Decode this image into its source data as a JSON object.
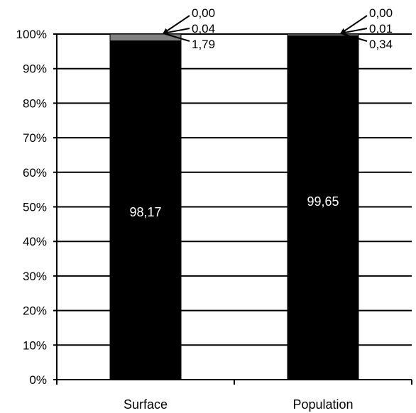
{
  "chart_data": {
    "type": "bar",
    "stacked": true,
    "normalized_percent": true,
    "categories": [
      "Surface",
      "Population"
    ],
    "series": [
      {
        "values": [
          98.17,
          99.65
        ],
        "labels": [
          "98,17",
          "99,65"
        ],
        "color": "#000000"
      },
      {
        "values": [
          1.79,
          0.34
        ],
        "labels": [
          "1,79",
          "0,34"
        ],
        "color": "#808080"
      },
      {
        "values": [
          0.04,
          0.01
        ],
        "labels": [
          "0,04",
          "0,01"
        ],
        "color": "#d9d9d9"
      },
      {
        "values": [
          0.0,
          0.0
        ],
        "labels": [
          "0,00",
          "0,00"
        ],
        "color": "#ffffff"
      }
    ],
    "yticks": [
      "0%",
      "10%",
      "20%",
      "30%",
      "40%",
      "50%",
      "60%",
      "70%",
      "80%",
      "90%",
      "100%"
    ],
    "ylim": [
      0,
      100
    ],
    "grid": true,
    "legend": "none",
    "title": "",
    "xlabel": "",
    "ylabel": ""
  }
}
